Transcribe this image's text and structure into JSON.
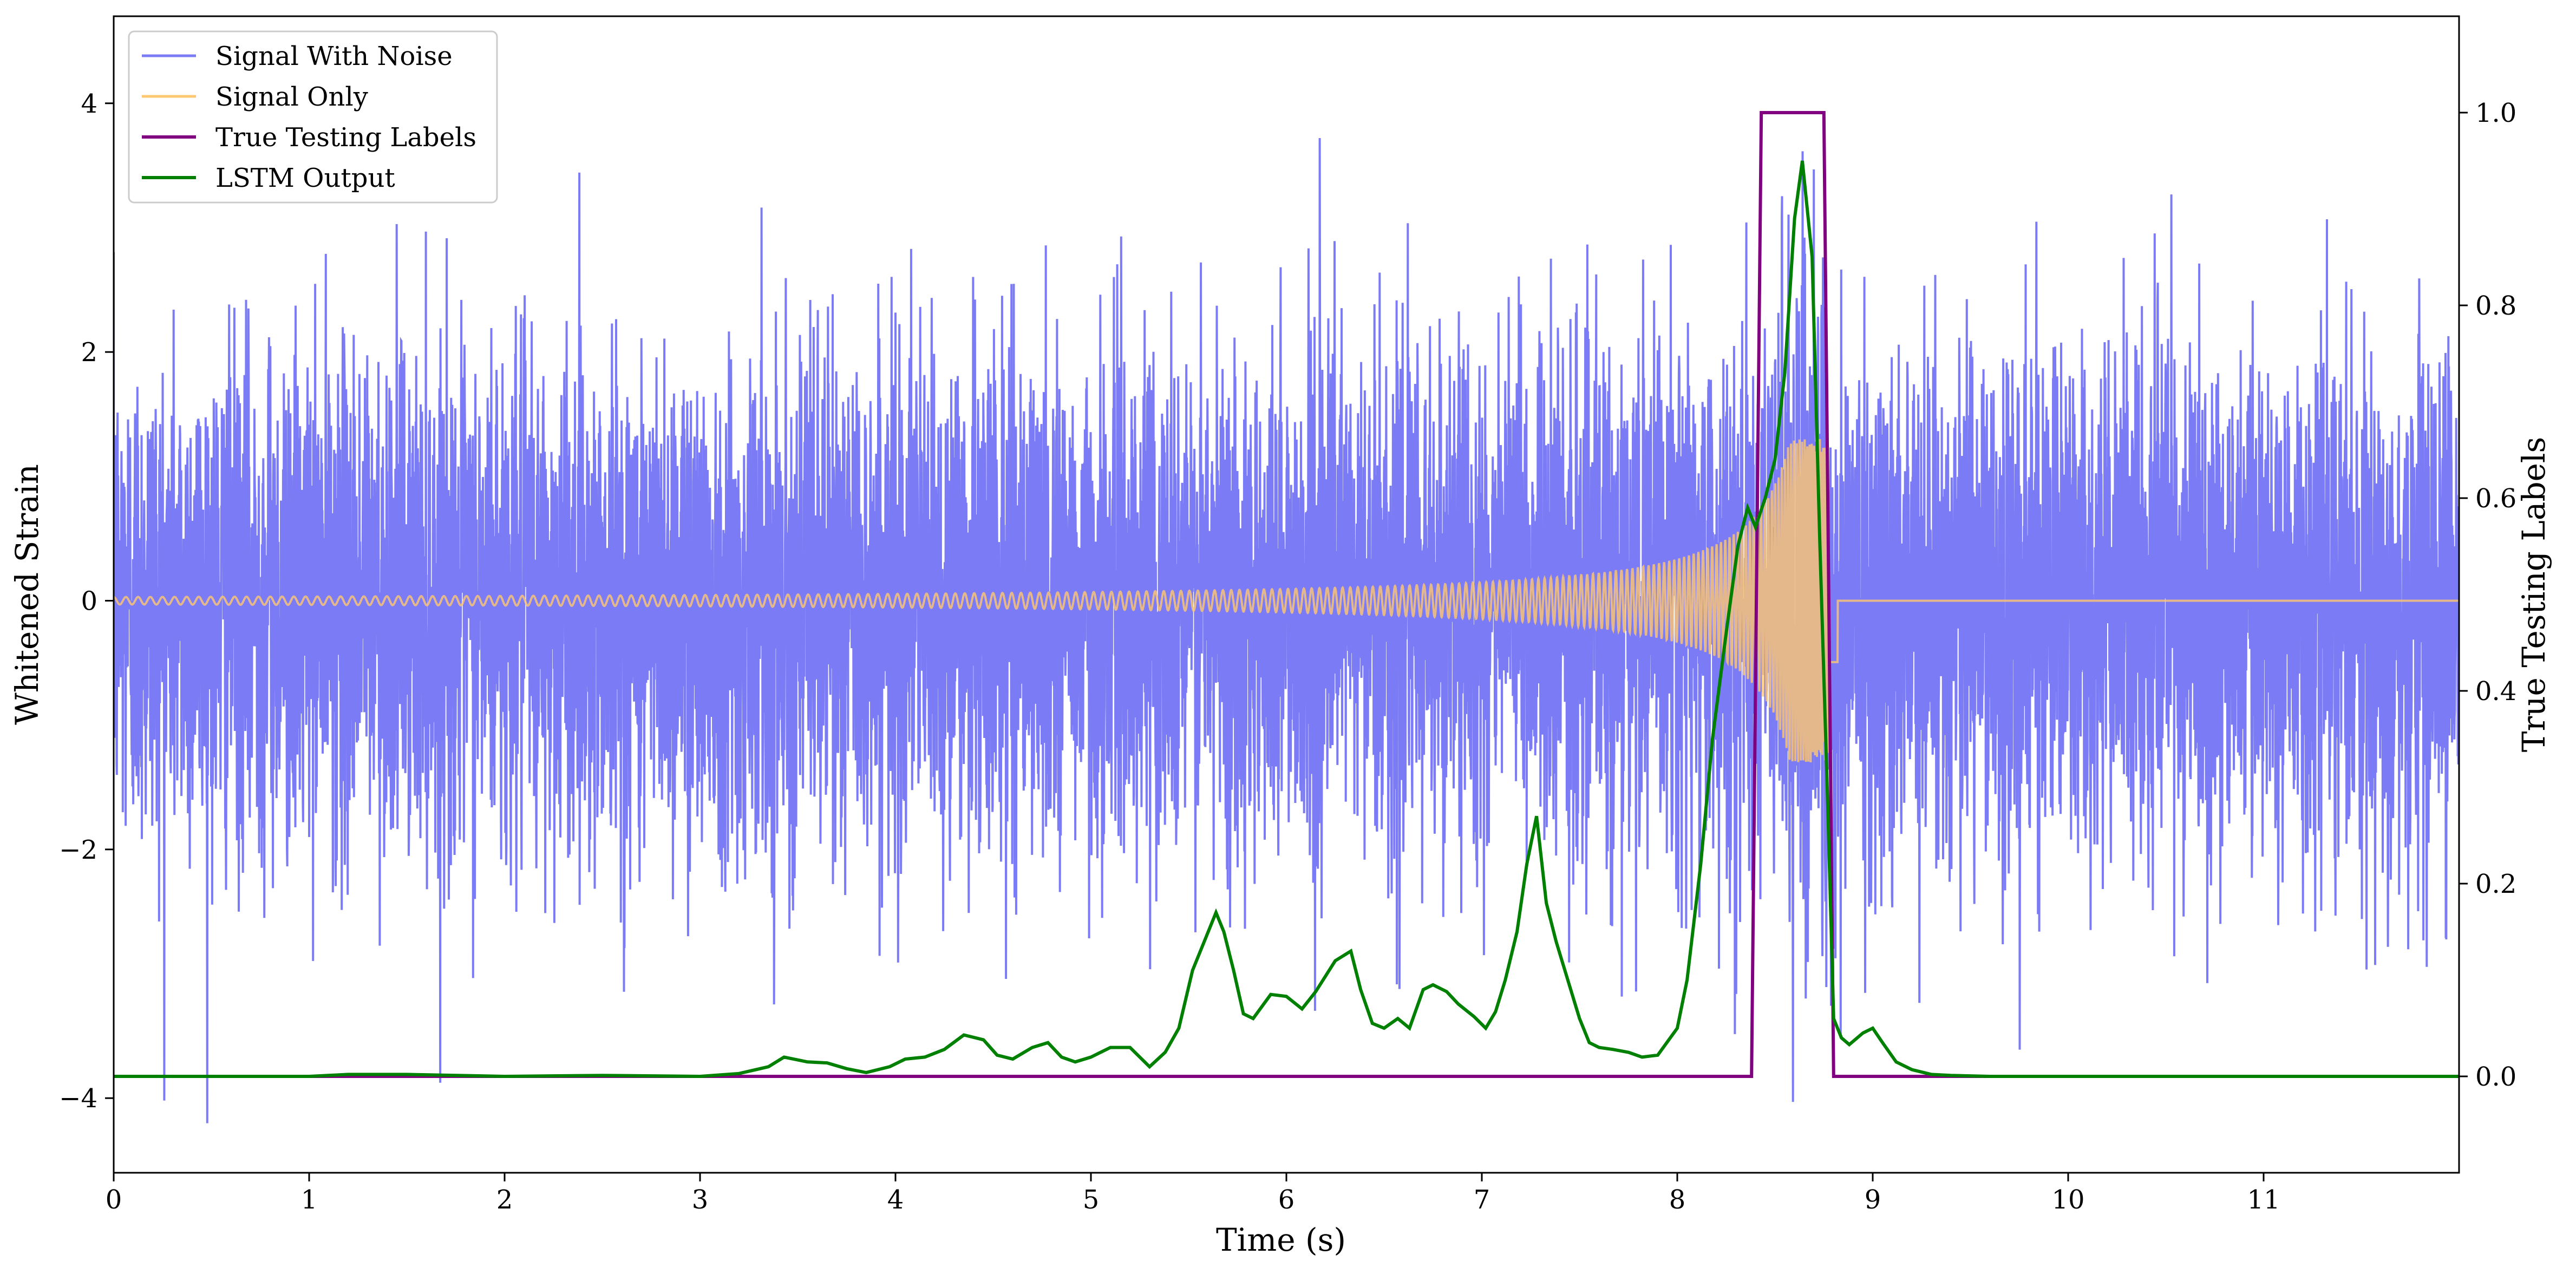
{
  "chart_data": {
    "type": "line",
    "xlabel": "Time (s)",
    "ylabel_left": "Whitened Strain",
    "ylabel_right": "True Testing Labels",
    "xlim": [
      0,
      12
    ],
    "ylim_left": [
      -4.6,
      4.7
    ],
    "ylim_right": [
      -0.1,
      1.1
    ],
    "xticks": [
      0,
      1,
      2,
      3,
      4,
      5,
      6,
      7,
      8,
      9,
      10,
      11
    ],
    "xtick_labels": [
      "0",
      "1",
      "2",
      "3",
      "4",
      "5",
      "6",
      "7",
      "8",
      "9",
      "10",
      "11"
    ],
    "yticks_left": [
      -4,
      -2,
      0,
      2,
      4
    ],
    "ytick_labels_left": [
      "−4",
      "−2",
      "0",
      "2",
      "4"
    ],
    "yticks_right": [
      0.0,
      0.2,
      0.4,
      0.6,
      0.8,
      1.0
    ],
    "ytick_labels_right": [
      "0.0",
      "0.2",
      "0.4",
      "0.6",
      "0.8",
      "1.0"
    ],
    "grid": false,
    "legend_position": "upper-left",
    "colors": {
      "noise": "#7b7bf5",
      "signal": "#ffc870",
      "labels": "#800080",
      "lstm": "#008000"
    },
    "series": [
      {
        "name": "Signal With Noise",
        "axis": "left",
        "description": "dense Gaussian-like whitened noise, std about 1, peaks near ±4.3",
        "amplitude_typical": 1.0,
        "x_range": [
          0,
          12
        ]
      },
      {
        "name": "Signal Only",
        "axis": "left",
        "description": "gravitational-wave chirp, amplitude growing and frequency increasing until merger",
        "x_range": [
          0,
          8.82
        ],
        "amplitude_start": 0.03,
        "amplitude_peak": 1.3,
        "peak_time": 8.76,
        "end_time": 8.82
      },
      {
        "name": "True Testing Labels",
        "axis": "right",
        "x": [
          0,
          8.38,
          8.43,
          8.75,
          8.8,
          12
        ],
        "y": [
          0,
          0,
          1,
          1,
          0,
          0
        ]
      },
      {
        "name": "LSTM Output",
        "axis": "right",
        "x": [
          0,
          1.0,
          1.2,
          1.5,
          2.0,
          2.5,
          3.0,
          3.2,
          3.35,
          3.43,
          3.55,
          3.65,
          3.75,
          3.85,
          3.97,
          4.05,
          4.15,
          4.25,
          4.35,
          4.45,
          4.52,
          4.6,
          4.7,
          4.78,
          4.85,
          4.92,
          5.0,
          5.1,
          5.2,
          5.3,
          5.38,
          5.45,
          5.52,
          5.58,
          5.64,
          5.68,
          5.73,
          5.78,
          5.83,
          5.92,
          6.0,
          6.08,
          6.15,
          6.25,
          6.33,
          6.38,
          6.44,
          6.5,
          6.57,
          6.63,
          6.7,
          6.75,
          6.82,
          6.88,
          6.96,
          7.02,
          7.07,
          7.12,
          7.18,
          7.23,
          7.28,
          7.33,
          7.38,
          7.44,
          7.5,
          7.55,
          7.6,
          7.67,
          7.75,
          7.82,
          7.9,
          8.0,
          8.05,
          8.12,
          8.18,
          8.25,
          8.31,
          8.36,
          8.4,
          8.45,
          8.5,
          8.55,
          8.6,
          8.64,
          8.69,
          8.73,
          8.77,
          8.8,
          8.84,
          8.88,
          8.95,
          9.0,
          9.05,
          9.12,
          9.2,
          9.3,
          9.4,
          9.6,
          10.0,
          12.0
        ],
        "y": [
          0.0,
          0.0,
          0.002,
          0.002,
          0.0,
          0.001,
          0.0,
          0.003,
          0.01,
          0.02,
          0.015,
          0.014,
          0.008,
          0.004,
          0.01,
          0.018,
          0.02,
          0.028,
          0.043,
          0.038,
          0.022,
          0.018,
          0.03,
          0.035,
          0.02,
          0.015,
          0.02,
          0.03,
          0.03,
          0.01,
          0.025,
          0.05,
          0.11,
          0.14,
          0.17,
          0.15,
          0.11,
          0.065,
          0.06,
          0.085,
          0.083,
          0.07,
          0.088,
          0.12,
          0.13,
          0.09,
          0.055,
          0.05,
          0.06,
          0.05,
          0.09,
          0.095,
          0.088,
          0.075,
          0.062,
          0.05,
          0.067,
          0.1,
          0.15,
          0.22,
          0.27,
          0.18,
          0.14,
          0.1,
          0.06,
          0.035,
          0.03,
          0.028,
          0.025,
          0.02,
          0.022,
          0.05,
          0.1,
          0.22,
          0.35,
          0.46,
          0.55,
          0.59,
          0.57,
          0.6,
          0.64,
          0.73,
          0.89,
          0.95,
          0.85,
          0.55,
          0.28,
          0.06,
          0.04,
          0.033,
          0.045,
          0.05,
          0.035,
          0.015,
          0.007,
          0.002,
          0.001,
          0.0,
          0.0,
          0.0
        ]
      }
    ]
  }
}
